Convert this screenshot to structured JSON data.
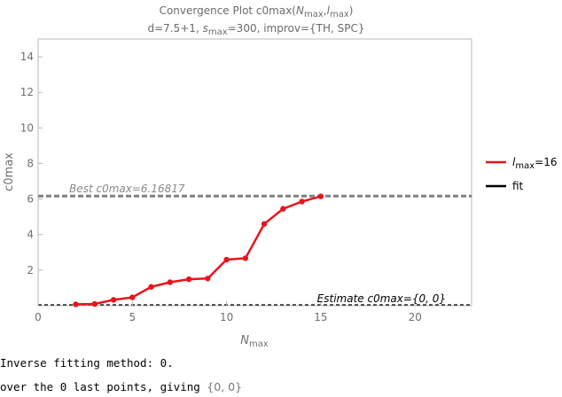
{
  "chart_data": {
    "type": "line",
    "title": {
      "prefix": "Convergence Plot c0max(",
      "n_main": "N",
      "n_sub": "max",
      "sep": ",",
      "l_main": "l",
      "l_sub": "max",
      "suffix": ")"
    },
    "subtitle": {
      "a": "d=7.5+1, ",
      "s_main": "s",
      "s_sub": "max",
      "b": "=300, improv={TH, SPC}"
    },
    "xlabel": {
      "main": "N",
      "sub": "max"
    },
    "ylabel": "c0max",
    "xlim": [
      0,
      23
    ],
    "ylim": [
      0,
      15
    ],
    "xticks": [
      0,
      5,
      10,
      15,
      20
    ],
    "yticks": [
      2,
      4,
      6,
      8,
      10,
      12,
      14
    ],
    "grid": false,
    "legend_position": "right",
    "series": [
      {
        "legend_main": "l",
        "legend_sub": "max",
        "legend_suffix": "=16",
        "color": "#e8141c",
        "x": [
          2,
          3,
          4,
          5,
          6,
          7,
          8,
          9,
          10,
          11,
          12,
          13,
          14,
          15
        ],
        "y": [
          0.08,
          0.1,
          0.33,
          0.47,
          1.06,
          1.32,
          1.49,
          1.53,
          2.59,
          2.67,
          4.6,
          5.45,
          5.86,
          6.15
        ]
      }
    ],
    "fit_legend": "fit",
    "fit_color": "#000000",
    "reference_lines": [
      {
        "label": "Best c0max=6.16817",
        "y": 6.16817,
        "color": "#808080"
      },
      {
        "label": "Estimate c0max={0, 0}",
        "y": 0,
        "color": "#000000"
      }
    ]
  },
  "output": {
    "line1": "Inverse fitting method: 0.",
    "line2_prefix": "over the 0 last points, giving ",
    "line2_value": "{0, 0}"
  }
}
